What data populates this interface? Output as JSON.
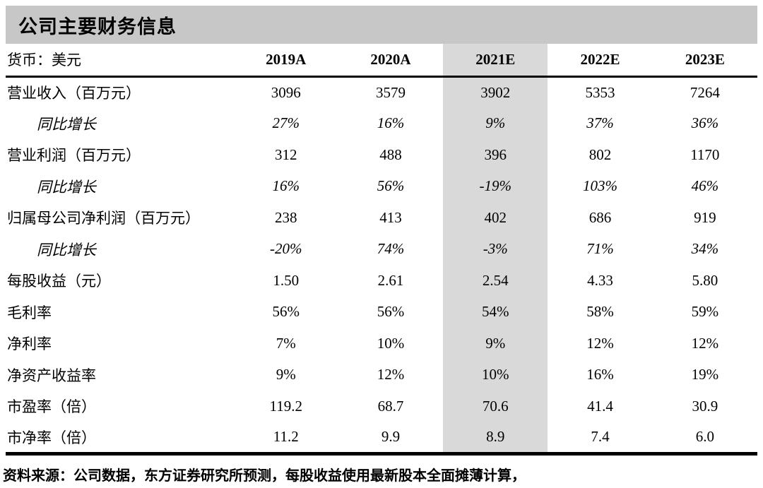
{
  "title": "公司主要财务信息",
  "colors": {
    "title_bar_bg": "#c7c7c7",
    "highlight_column_bg": "#d9d9d9",
    "rule_color": "#000000"
  },
  "table": {
    "currency_label": "货币：美元",
    "columns": [
      "2019A",
      "2020A",
      "2021E",
      "2022E",
      "2023E"
    ],
    "highlight_column": "2021E",
    "rows": [
      {
        "label": "营业收入（百万元）",
        "values": [
          "3096",
          "3579",
          "3902",
          "5353",
          "7264"
        ]
      },
      {
        "label": "同比增长",
        "values": [
          "27%",
          "16%",
          "9%",
          "37%",
          "36%"
        ]
      },
      {
        "label": "营业利润（百万元）",
        "values": [
          "312",
          "488",
          "396",
          "802",
          "1170"
        ]
      },
      {
        "label": "同比增长",
        "values": [
          "16%",
          "56%",
          "-19%",
          "103%",
          "46%"
        ]
      },
      {
        "label": "归属母公司净利润（百万元）",
        "values": [
          "238",
          "413",
          "402",
          "686",
          "919"
        ]
      },
      {
        "label": "同比增长",
        "values": [
          "-20%",
          "74%",
          "-3%",
          "71%",
          "34%"
        ]
      },
      {
        "label": "每股收益（元）",
        "values": [
          "1.50",
          "2.61",
          "2.54",
          "4.33",
          "5.80"
        ]
      },
      {
        "label": "毛利率",
        "values": [
          "56%",
          "56%",
          "54%",
          "58%",
          "59%"
        ]
      },
      {
        "label": "净利率",
        "values": [
          "7%",
          "10%",
          "9%",
          "12%",
          "12%"
        ]
      },
      {
        "label": "净资产收益率",
        "values": [
          "9%",
          "12%",
          "10%",
          "16%",
          "19%"
        ]
      },
      {
        "label": "市盈率（倍）",
        "values": [
          "119.2",
          "68.7",
          "70.6",
          "41.4",
          "30.9"
        ]
      },
      {
        "label": "市净率（倍）",
        "values": [
          "11.2",
          "9.9",
          "8.9",
          "7.4",
          "6.0"
        ]
      }
    ]
  },
  "footer": {
    "source_note": "资料来源：公司数据，东方证券研究所预测，每股收益使用最新股本全面摊薄计算，"
  }
}
